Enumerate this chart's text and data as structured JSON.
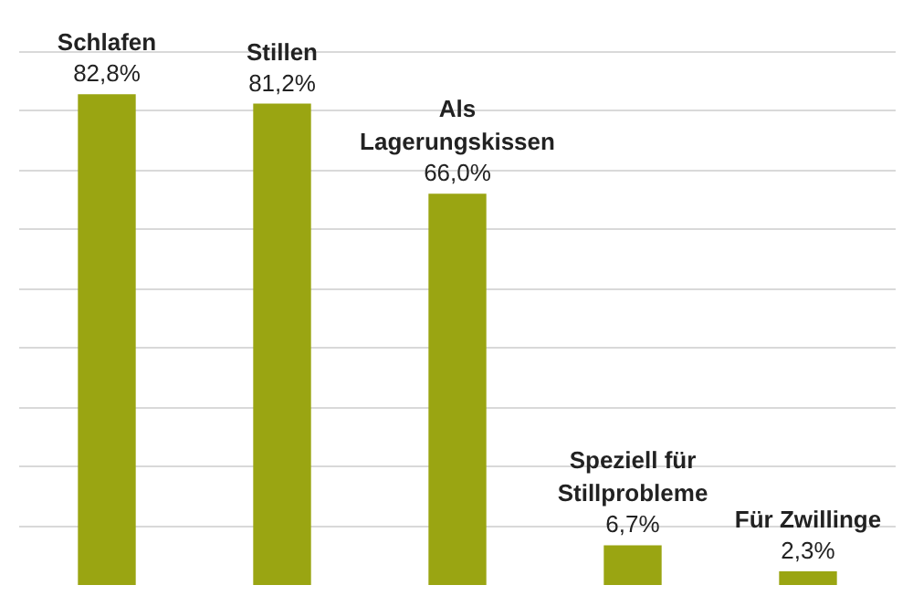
{
  "chart_data": {
    "type": "bar",
    "categories": [
      "Schlafen",
      "Stillen",
      "Als\nLagerungskissen",
      "Speziell für\nStillprobleme",
      "Für Zwillinge"
    ],
    "values": [
      82.8,
      81.2,
      66.0,
      6.7,
      2.3
    ],
    "value_labels": [
      "82,8%",
      "81,2%",
      "66,0%",
      "6,7%",
      "2,3%"
    ],
    "color": "#9aa512",
    "grid": "y",
    "tick_labels": false
  }
}
